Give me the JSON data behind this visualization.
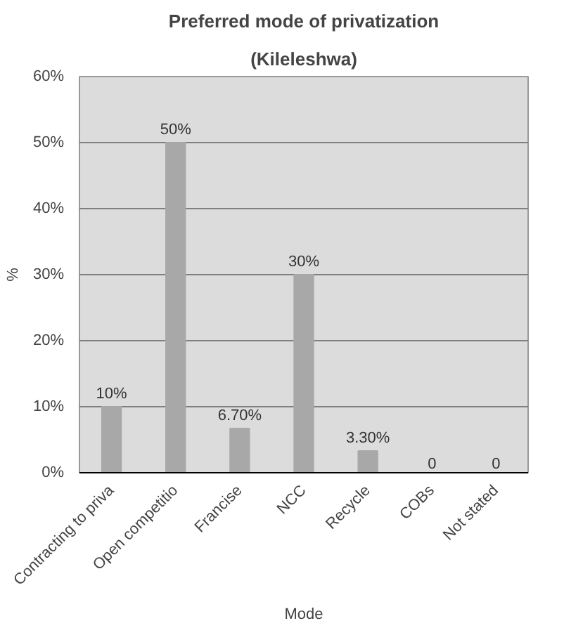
{
  "chart_data": {
    "type": "bar",
    "title": "Preferred mode of privatization",
    "subtitle": "(Kileleshwa)",
    "xlabel": "Mode",
    "ylabel": "%",
    "categories": [
      "Contracting to priva",
      "Open competitio",
      "Francise",
      "NCC",
      "Recycle",
      "COBs",
      "Not stated"
    ],
    "values": [
      10,
      50,
      6.7,
      30,
      3.3,
      0,
      0
    ],
    "value_labels": [
      "10%",
      "50%",
      "6.70%",
      "30%",
      "3.30%",
      "0",
      "0"
    ],
    "color": "#a8a8a8",
    "ylim": [
      0,
      60
    ],
    "yticks": [
      {
        "value": 0,
        "label": "0%"
      },
      {
        "value": 10,
        "label": "10%"
      },
      {
        "value": 20,
        "label": "20%"
      },
      {
        "value": 30,
        "label": "30%"
      },
      {
        "value": 40,
        "label": "40%"
      },
      {
        "value": 50,
        "label": "50%"
      },
      {
        "value": 60,
        "label": "60%"
      }
    ],
    "grid": "y"
  }
}
